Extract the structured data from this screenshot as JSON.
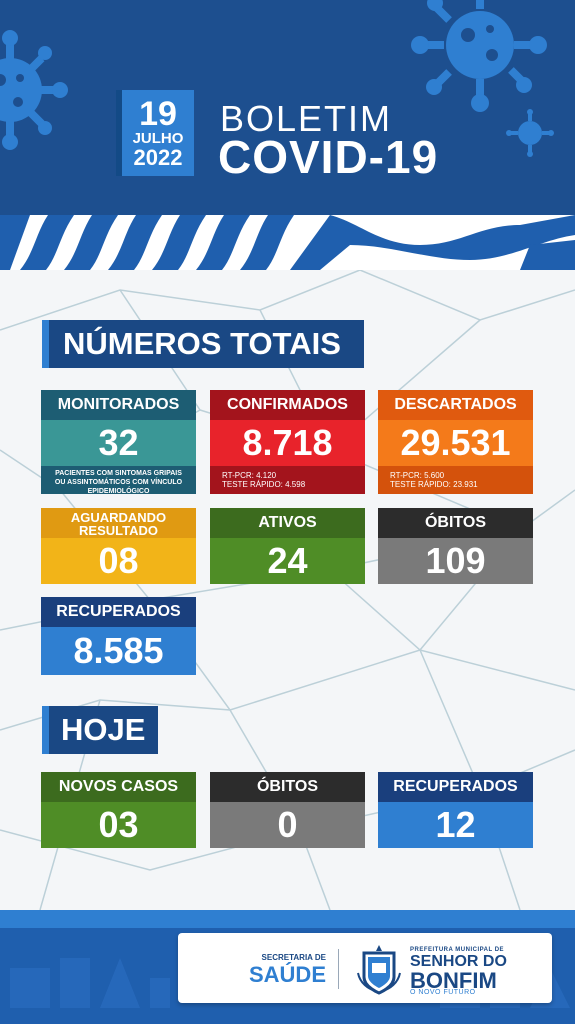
{
  "header": {
    "day": "19",
    "month": "JULHO",
    "year": "2022",
    "title_line1": "BOLETIM",
    "title_line2": "COVID-19"
  },
  "totais": {
    "section_title": "NÚMEROS TOTAIS",
    "monitorados": {
      "label": "MONITORADOS",
      "value": "32",
      "note": "PACIENTES COM SINTOMAS GRIPAIS OU ASSINTOMÁTICOS COM VÍNCULO EPIDEMIOLÓGICO",
      "color_label": "#1d5d73",
      "color_value": "#3a9796"
    },
    "confirmados": {
      "label": "CONFIRMADOS",
      "value": "8.718",
      "note1": "RT-PCR: 4.120",
      "note2": "TESTE RÁPIDO: 4.598",
      "color_label": "#a3141c",
      "color_value": "#e8232b"
    },
    "descartados": {
      "label": "DESCARTADOS",
      "value": "29.531",
      "note1": "RT-PCR: 5.600",
      "note2": "TESTE RÁPIDO: 23.931",
      "color_label": "#e05a0f",
      "color_value": "#f47a1a"
    },
    "aguardando": {
      "label_line1": "AGUARDANDO",
      "label_line2": "RESULTADO",
      "value": "08",
      "color_label": "#e09a12",
      "color_value": "#f2b418"
    },
    "ativos": {
      "label": "ATIVOS",
      "value": "24",
      "color_label": "#3c6b1e",
      "color_value": "#4f8d26"
    },
    "obitos": {
      "label": "ÓBITOS",
      "value": "109",
      "color_label": "#2c2c2c",
      "color_value": "#7a7a7a"
    },
    "recuperados": {
      "label": "RECUPERADOS",
      "value": "8.585",
      "color_label": "#1a3f7d",
      "color_value": "#2f7fd1"
    }
  },
  "hoje": {
    "section_title": "HOJE",
    "novos_casos": {
      "label": "NOVOS CASOS",
      "value": "03",
      "color_label": "#3c6b1e",
      "color_value": "#4f8d26"
    },
    "obitos": {
      "label": "ÓBITOS",
      "value": "0",
      "color_label": "#2c2c2c",
      "color_value": "#7a7a7a"
    },
    "recuperados": {
      "label": "RECUPERADOS",
      "value": "12",
      "color_label": "#1a3f7d",
      "color_value": "#2f7fd1"
    }
  },
  "footer": {
    "secretaria_small": "SECRETARIA DE",
    "secretaria_big": "SAÚDE",
    "prefeitura_small": "PREFEITURA MUNICIPAL DE",
    "prefeitura_line1": "SENHOR DO",
    "prefeitura_line2": "BONFIM",
    "prefeitura_tag": "O NOVO FUTURO"
  },
  "icons": {
    "virus": "virus-icon",
    "crest": "municipal-crest-icon"
  }
}
